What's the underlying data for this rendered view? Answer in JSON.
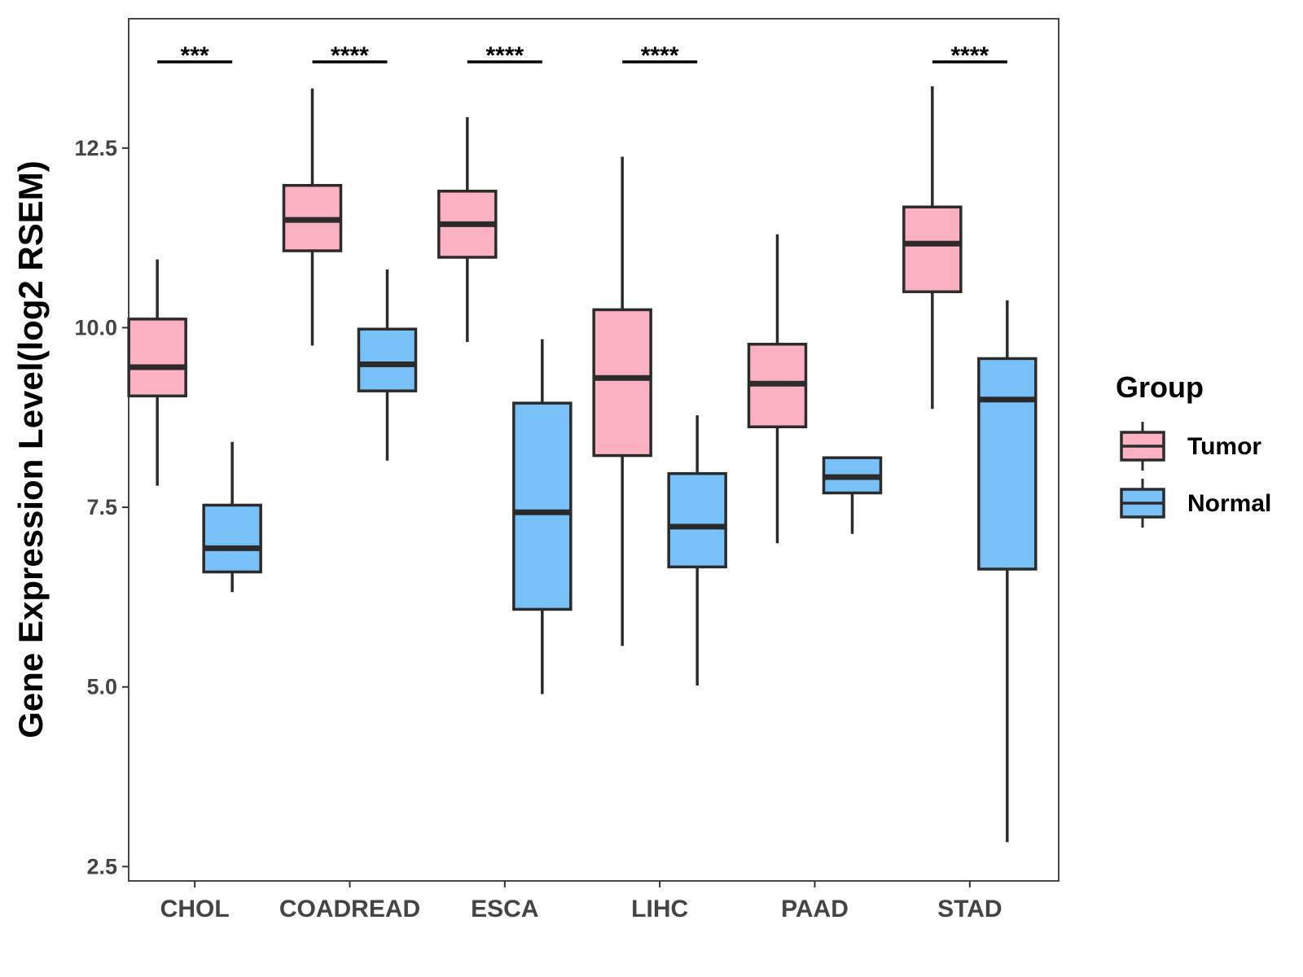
{
  "chart_data": {
    "type": "boxplot",
    "title": "",
    "xlabel": "",
    "ylabel": "Gene Expression Level(log2 RSEM)",
    "ylim": [
      2.3,
      14.3
    ],
    "yticks": [
      "2.5",
      "5.0",
      "7.5",
      "10.0",
      "12.5"
    ],
    "ytick_values": [
      2.5,
      5.0,
      7.5,
      10.0,
      12.5
    ],
    "grid": false,
    "categories": [
      "CHOL",
      "COADREAD",
      "ESCA",
      "LIHC",
      "PAAD",
      "STAD"
    ],
    "legend": {
      "title": "Group",
      "position": "right",
      "entries": [
        "Tumor",
        "Normal"
      ]
    },
    "colors": {
      "Tumor": "#FBB1C2",
      "Normal": "#77C1F8",
      "outline": "#2b2b2b"
    },
    "series": [
      {
        "name": "Tumor",
        "boxes": [
          {
            "category": "CHOL",
            "min": 7.8,
            "q1": 9.05,
            "median": 9.45,
            "q3": 10.12,
            "max": 10.95
          },
          {
            "category": "COADREAD",
            "min": 9.75,
            "q1": 11.07,
            "median": 11.5,
            "q3": 11.98,
            "max": 13.33
          },
          {
            "category": "ESCA",
            "min": 9.8,
            "q1": 10.98,
            "median": 11.44,
            "q3": 11.9,
            "max": 12.93
          },
          {
            "category": "LIHC",
            "min": 5.57,
            "q1": 8.22,
            "median": 9.3,
            "q3": 10.25,
            "max": 12.38
          },
          {
            "category": "PAAD",
            "min": 7.0,
            "q1": 8.62,
            "median": 9.22,
            "q3": 9.77,
            "max": 11.3
          },
          {
            "category": "STAD",
            "min": 8.87,
            "q1": 10.5,
            "median": 11.17,
            "q3": 11.68,
            "max": 13.36
          }
        ]
      },
      {
        "name": "Normal",
        "boxes": [
          {
            "category": "CHOL",
            "min": 6.32,
            "q1": 6.6,
            "median": 6.93,
            "q3": 7.53,
            "max": 8.41
          },
          {
            "category": "COADREAD",
            "min": 8.15,
            "q1": 9.12,
            "median": 9.49,
            "q3": 9.98,
            "max": 10.81
          },
          {
            "category": "ESCA",
            "min": 4.9,
            "q1": 6.08,
            "median": 7.43,
            "q3": 8.95,
            "max": 9.84
          },
          {
            "category": "LIHC",
            "min": 5.02,
            "q1": 6.67,
            "median": 7.23,
            "q3": 7.97,
            "max": 8.78
          },
          {
            "category": "PAAD",
            "min": 7.13,
            "q1": 7.7,
            "median": 7.92,
            "q3": 8.19,
            "max": 8.19
          },
          {
            "category": "STAD",
            "min": 2.84,
            "q1": 6.64,
            "median": 9.0,
            "q3": 9.57,
            "max": 10.38
          }
        ]
      }
    ],
    "annotations": [
      {
        "category": "CHOL",
        "label": "***"
      },
      {
        "category": "COADREAD",
        "label": "****"
      },
      {
        "category": "ESCA",
        "label": "****"
      },
      {
        "category": "LIHC",
        "label": "****"
      },
      {
        "category": "STAD",
        "label": "****"
      }
    ],
    "annotation_level": 13.7
  }
}
